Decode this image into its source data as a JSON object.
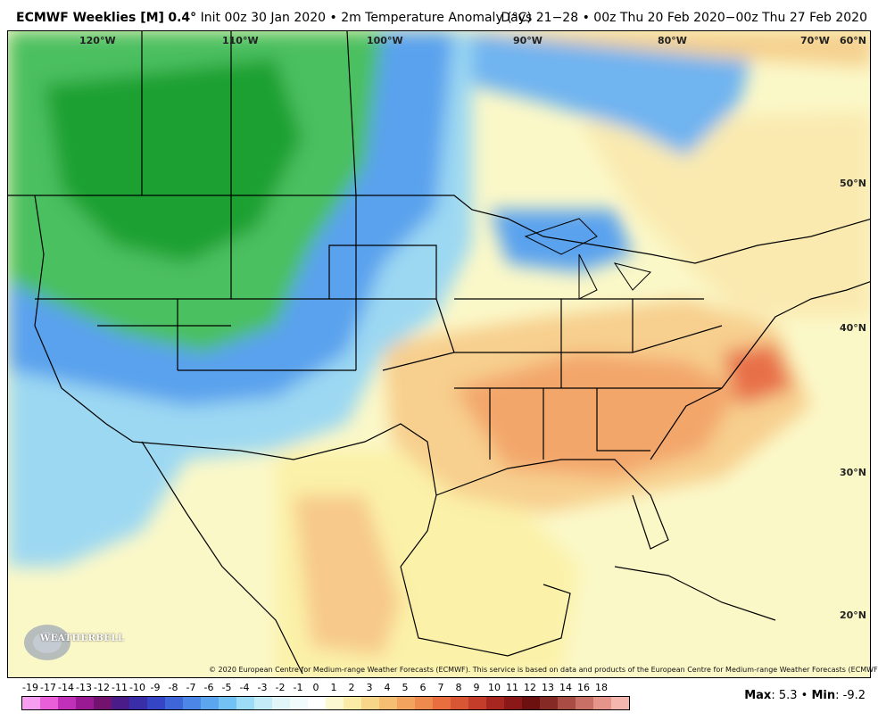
{
  "header": {
    "model": "ECMWF Weeklies [M]",
    "resolution": "0.4°",
    "init": "Init 00z 30 Jan 2020",
    "bullet": "•",
    "field": "2m Temperature Anomaly (°C)",
    "period": "Days 21−28 • 00z Thu 20 Feb 2020−00z Thu 27 Feb 2020"
  },
  "map": {
    "lon_labels": [
      "120°W",
      "110°W",
      "100°W",
      "90°W",
      "80°W",
      "70°W"
    ],
    "lat_labels": [
      "60°N",
      "50°N",
      "40°N",
      "30°N",
      "20°N"
    ],
    "logo_text": "WEATHERBELL",
    "copyright": "© 2020 European Centre for Medium-range Weather Forecasts (ECMWF). This service is based on data and products of the European Centre for Medium-range Weather Forecasts (ECMWF)."
  },
  "legend": {
    "values": [
      "-19",
      "-17",
      "-14",
      "-13",
      "-12",
      "-11",
      "-10",
      "-9",
      "-8",
      "-7",
      "-6",
      "-5",
      "-4",
      "-3",
      "-2",
      "-1",
      "0",
      "1",
      "2",
      "3",
      "4",
      "5",
      "6",
      "7",
      "8",
      "9",
      "10",
      "11",
      "12",
      "13",
      "14",
      "16",
      "18"
    ],
    "colors": [
      "#f79ef0",
      "#e85fd8",
      "#c030b8",
      "#9a1a94",
      "#741270",
      "#4a1c8a",
      "#3a2ea8",
      "#3446c6",
      "#3e66d8",
      "#4c86e6",
      "#5ca6f0",
      "#72c2f4",
      "#9cdcf6",
      "#c4ecf8",
      "#e2f6fa",
      "#f2fbfc",
      "#ffffff",
      "#fcf8d0",
      "#faeca6",
      "#f7d68a",
      "#f5be72",
      "#f2a45e",
      "#ee8a4e",
      "#e86e40",
      "#d85634",
      "#c43c2a",
      "#a82620",
      "#8a1818",
      "#6c1010",
      "#862a26",
      "#a84c44",
      "#c87066",
      "#e4948a",
      "#f4b6ae"
    ],
    "label_positions": []
  },
  "max_min": {
    "max_label": "Max",
    "max_value": ": 5.3",
    "min_label": "Min",
    "min_value": ": -9.2"
  }
}
